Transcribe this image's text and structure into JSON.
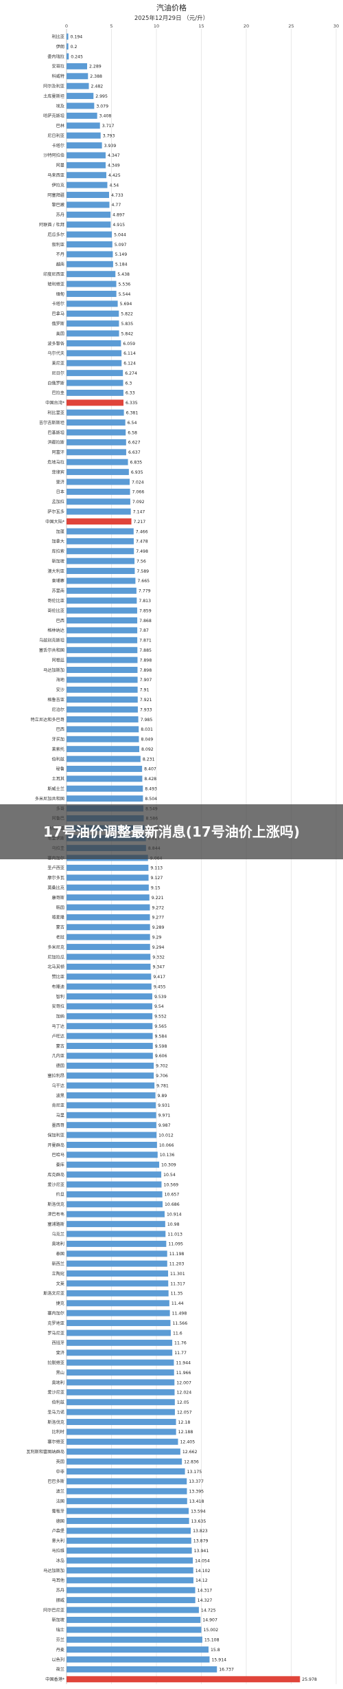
{
  "overlay": {
    "headline": "17号油价调整最新消息(17号油价上涨吗)"
  },
  "chart_data": {
    "type": "bar",
    "orientation": "horizontal",
    "title": "汽油价格",
    "subtitle": "2025年12月29日 （元/升）",
    "xlim": [
      0,
      30
    ],
    "xticks": [
      0,
      5,
      10,
      15,
      20,
      25,
      30
    ],
    "grid": true,
    "colors": {
      "default": "#5b9bd5",
      "highlight": "#e0443a"
    },
    "highlight_categories": [
      "中国台湾*",
      "中国大陆*",
      "中国香港*"
    ],
    "categories": [
      "利比亚",
      "伊朗",
      "委内瑞拉",
      "安哥拉",
      "科威特",
      "阿尔及利亚",
      "土库曼斯坦",
      "埃及",
      "哈萨克斯坦",
      "巴林",
      "尼日利亚",
      "卡塔尔",
      "沙特阿拉伯",
      "阿曼",
      "马来西亚",
      "伊拉克",
      "阿塞拜疆",
      "黎巴嫩",
      "苏丹",
      "阿联酋 / 杜拜",
      "厄瓜多尔",
      "叙利亚",
      "不丹",
      "越南",
      "印度尼西亚",
      "玻利维亚",
      "缅甸",
      "卡塔尔",
      "巴拿马",
      "俄罗斯",
      "美国",
      "波多黎各",
      "乌尔代夫",
      "莱尼亚",
      "尼日尔",
      "白俄罗斯",
      "巴拉圭",
      "中国台湾*",
      "利比里亚",
      "吉尔吉斯斯坦",
      "巴基斯坦",
      "洪都拉斯",
      "阿富汗",
      "危地马拉",
      "菲律宾",
      "斐济",
      "日本",
      "孟加拉",
      "萨尔瓦多",
      "中国大陆*",
      "加蓬",
      "加拿大",
      "库拉索",
      "新加坡",
      "澳大利亚",
      "柬埔寨",
      "苏里南",
      "哥伦比亚",
      "哥伦比亚",
      "巴西",
      "格林纳达",
      "乌兹别克斯坦",
      "塞舌尔共和国",
      "阿根廷",
      "马达加斯加",
      "海地",
      "安沙",
      "格鲁吉亚",
      "尼泊尔",
      "特立尼达和多巴哥",
      "巴西",
      "牙买加",
      "莱索托",
      "伯利兹",
      "秘鲁",
      "土耳其",
      "斯威士兰",
      "多米尼加共和国",
      "多哥",
      "阿鲁巴",
      "纳米比亚",
      "毛里求斯",
      "乌拉圭",
      "塞内加尔",
      "圣卢西亚",
      "摩尔多瓦",
      "莫桑比克",
      "康哥斯",
      "韩国",
      "喀麦隆",
      "蒙古",
      "老挝",
      "多米尼克",
      "尼加拉瓜",
      "北马其顿",
      "赞比亚",
      "布隆迪",
      "智利",
      "安哥拉",
      "加纳",
      "马丁达",
      "卢旺达",
      "蒙古",
      "几内亚",
      "德国",
      "塞拉利昂",
      "乌干达",
      "波黑",
      "肯尼亚",
      "马里",
      "墨西哥",
      "保加利亚",
      "开曼群岛",
      "巴哈马",
      "秦库",
      "库克群岛",
      "爱沙尼亚",
      "约旦",
      "斯洛伐克",
      "津巴布韦",
      "塞浦路斯",
      "乌克兰",
      "奥地利",
      "泰国",
      "新西兰",
      "立陶宛",
      "文莱",
      "斯洛文尼亚",
      "捷克",
      "塞内加尔",
      "克罗地亚",
      "罗马尼亚",
      "西班牙",
      "斐济",
      "拉脱维亚",
      "黑山",
      "奥地利",
      "爱沙尼亚",
      "伯利兹",
      "圣马力诺",
      "斯洛伐克",
      "比利时",
      "塞尔维亚",
      "瓦利斯和富图纳群岛",
      "英国",
      "中非",
      "巴巴多斯",
      "波兰",
      "法国",
      "葡萄牙",
      "德国",
      "卢森堡",
      "意大利",
      "马拉维",
      "冰岛",
      "马达加斯加",
      "马耳他",
      "苏丹",
      "挪威",
      "阿尔巴尼亚",
      "新加坡",
      "瑞士",
      "芬兰",
      "丹麦",
      "以色列",
      "荷兰",
      "中国香港*"
    ],
    "values": [
      0.194,
      0.2,
      0.245,
      2.289,
      2.388,
      2.482,
      2.995,
      3.079,
      3.408,
      3.717,
      3.793,
      3.939,
      4.347,
      4.349,
      4.425,
      4.54,
      4.733,
      4.77,
      4.897,
      4.915,
      5.044,
      5.097,
      5.149,
      5.184,
      5.438,
      5.536,
      5.544,
      5.694,
      5.822,
      5.835,
      5.842,
      6.059,
      6.114,
      6.124,
      6.274,
      6.3,
      6.33,
      6.335,
      6.381,
      6.54,
      6.58,
      6.627,
      6.637,
      6.835,
      6.935,
      7.024,
      7.066,
      7.092,
      7.147,
      7.217,
      7.466,
      7.478,
      7.498,
      7.56,
      7.589,
      7.665,
      7.779,
      7.813,
      7.859,
      7.868,
      7.87,
      7.871,
      7.885,
      7.898,
      7.898,
      7.907,
      7.91,
      7.921,
      7.933,
      7.985,
      8.031,
      8.049,
      8.092,
      8.231,
      8.407,
      8.428,
      8.493,
      8.504,
      8.549,
      8.586,
      8.674,
      8.827,
      8.844,
      9.064,
      9.113,
      9.127,
      9.15,
      9.221,
      9.272,
      9.277,
      9.289,
      9.29,
      9.294,
      9.332,
      9.347,
      9.417,
      9.455,
      9.539,
      9.54,
      9.552,
      9.565,
      9.584,
      9.598,
      9.606,
      9.702,
      9.706,
      9.781,
      9.89,
      9.931,
      9.971,
      9.987,
      10.012,
      10.066,
      10.136,
      10.309,
      10.54,
      10.569,
      10.657,
      10.686,
      10.914,
      10.98,
      11.013,
      11.095,
      11.198,
      11.203,
      11.301,
      11.317,
      11.35,
      11.44,
      11.498,
      11.566,
      11.6,
      11.76,
      11.77,
      11.944,
      11.966,
      12.007,
      12.024,
      12.05,
      12.057,
      12.18,
      12.188,
      12.405,
      12.662,
      12.836,
      13.175,
      13.377,
      13.395,
      13.418,
      13.594,
      13.635,
      13.823,
      13.879,
      13.941,
      14.054,
      14.102,
      14.12,
      14.317,
      14.327,
      14.725,
      14.907,
      15.002,
      15.108,
      15.8,
      15.914,
      16.737,
      25.978
    ]
  }
}
